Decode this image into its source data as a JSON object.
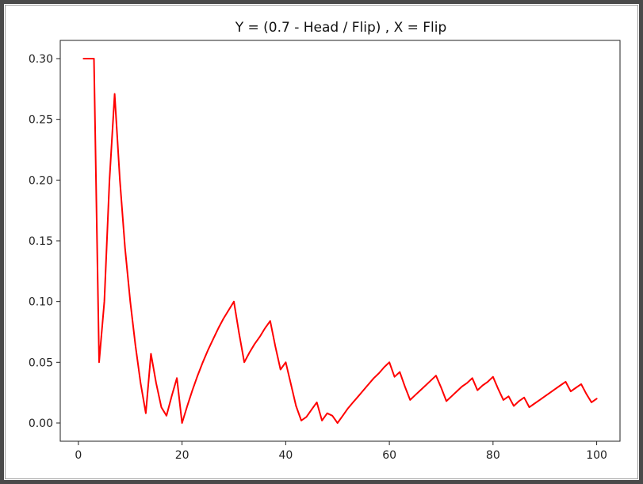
{
  "chart_data": {
    "type": "line",
    "title": "Y = (0.7 - Head / Flip) , X = Flip",
    "xlabel": "",
    "ylabel": "",
    "xlim": [
      -3.5,
      104.5
    ],
    "ylim": [
      -0.015,
      0.315
    ],
    "x_ticks": [
      0,
      20,
      40,
      60,
      80,
      100
    ],
    "x_tick_labels": [
      "0",
      "20",
      "40",
      "60",
      "80",
      "100"
    ],
    "y_ticks": [
      0.0,
      0.05,
      0.1,
      0.15,
      0.2,
      0.25,
      0.3
    ],
    "y_tick_labels": [
      "0.00",
      "0.05",
      "0.10",
      "0.15",
      "0.20",
      "0.25",
      "0.30"
    ],
    "grid": false,
    "legend": "none",
    "series": [
      {
        "color": "#ff0000",
        "x": [
          1,
          2,
          3,
          4,
          5,
          6,
          7,
          8,
          9,
          10,
          11,
          12,
          13,
          14,
          15,
          16,
          17,
          18,
          19,
          20,
          21,
          22,
          23,
          24,
          25,
          26,
          27,
          28,
          29,
          30,
          31,
          32,
          33,
          34,
          35,
          36,
          37,
          38,
          39,
          40,
          41,
          42,
          43,
          44,
          45,
          46,
          47,
          48,
          49,
          50,
          51,
          52,
          53,
          54,
          55,
          56,
          57,
          58,
          59,
          60,
          61,
          62,
          63,
          64,
          65,
          66,
          67,
          68,
          69,
          70,
          71,
          72,
          73,
          74,
          75,
          76,
          77,
          78,
          79,
          80,
          81,
          82,
          83,
          84,
          85,
          86,
          87,
          88,
          89,
          90,
          91,
          92,
          93,
          94,
          95,
          96,
          97,
          98,
          99,
          100
        ],
        "y": [
          0.3,
          0.3,
          0.3,
          0.05,
          0.1,
          0.2,
          0.271,
          0.2,
          0.144,
          0.1,
          0.064,
          0.033,
          0.008,
          0.057,
          0.033,
          0.013,
          0.006,
          0.022,
          0.037,
          0.0,
          0.014,
          0.027,
          0.039,
          0.05,
          0.06,
          0.069,
          0.078,
          0.086,
          0.093,
          0.1,
          0.074,
          0.05,
          0.058,
          0.065,
          0.071,
          0.078,
          0.084,
          0.063,
          0.044,
          0.05,
          0.032,
          0.014,
          0.002,
          0.005,
          0.011,
          0.017,
          0.002,
          0.008,
          0.006,
          0.0,
          0.006,
          0.012,
          0.017,
          0.022,
          0.027,
          0.032,
          0.037,
          0.041,
          0.046,
          0.05,
          0.038,
          0.042,
          0.03,
          0.019,
          0.023,
          0.027,
          0.031,
          0.035,
          0.039,
          0.029,
          0.018,
          0.022,
          0.026,
          0.03,
          0.033,
          0.037,
          0.027,
          0.031,
          0.034,
          0.038,
          0.028,
          0.019,
          0.022,
          0.014,
          0.018,
          0.021,
          0.013,
          0.016,
          0.019,
          0.022,
          0.025,
          0.028,
          0.031,
          0.034,
          0.026,
          0.029,
          0.032,
          0.024,
          0.017,
          0.02
        ]
      }
    ]
  }
}
